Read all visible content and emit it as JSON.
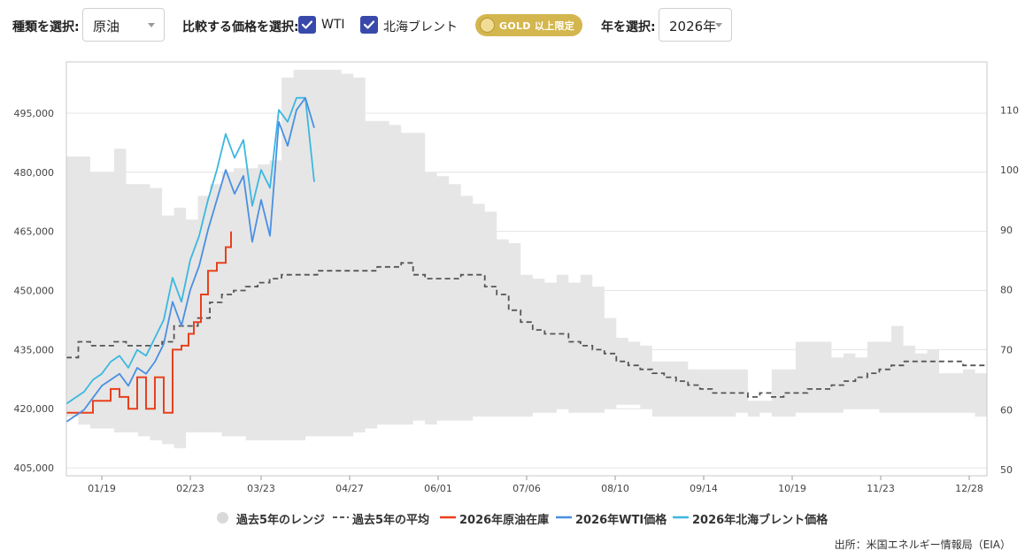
{
  "toolbar": {
    "type_label": "種類を選択:",
    "type_value": "原油",
    "compare_label": "比較する価格を選択:",
    "wti_label": "WTI",
    "brent_label": "北海ブレント",
    "gold_badge": "GOLD 以上限定",
    "year_label": "年を選択:",
    "year_value": "2026年"
  },
  "colors": {
    "range": "#e6e6e6",
    "avg": "#555555",
    "inventory": "#e8401c",
    "wti": "#4a8fe2",
    "brent": "#3cb7e0",
    "checkbox": "#3949ab",
    "gold": "#d4b64e"
  },
  "chart_data": {
    "type": "line",
    "x_ticks": [
      "01/19",
      "02/23",
      "03/23",
      "04/27",
      "06/01",
      "07/06",
      "08/10",
      "09/14",
      "10/19",
      "11/23",
      "12/28"
    ],
    "x_tick_weeks": [
      2,
      7,
      11,
      16,
      21,
      26,
      31,
      36,
      41,
      46,
      51
    ],
    "weeks_total": 52,
    "y_left": {
      "ticks": [
        "405,000",
        "420,000",
        "435,000",
        "450,000",
        "465,000",
        "480,000",
        "495,000"
      ],
      "values": [
        405000,
        420000,
        435000,
        450000,
        465000,
        480000,
        495000
      ],
      "min": 403000,
      "max": 508000
    },
    "y_right": {
      "ticks": [
        "50",
        "60",
        "70",
        "80",
        "90",
        "100",
        "110"
      ],
      "values": [
        50,
        60,
        70,
        80,
        90,
        100,
        110
      ],
      "min": 49,
      "max": 118
    },
    "grid": "horizontal",
    "series": [
      {
        "name": "過去5年のレンジ",
        "kind": "band",
        "axis": "left",
        "upper": [
          484,
          484,
          480,
          480,
          486,
          477,
          477,
          476,
          469,
          471,
          468,
          474,
          477,
          480,
          481,
          481,
          482,
          483,
          504,
          506,
          506,
          506,
          506,
          505,
          504,
          493,
          493,
          492,
          490,
          490,
          480,
          479,
          477,
          474,
          472,
          470,
          463,
          462,
          454,
          453,
          452,
          454,
          452,
          454,
          451,
          443,
          438,
          437,
          436,
          432,
          432,
          432,
          430,
          430,
          430,
          430,
          430,
          422,
          422,
          430,
          430,
          437,
          437,
          437,
          433,
          434,
          433,
          437,
          437,
          441,
          436,
          434,
          435,
          429,
          429,
          430,
          429
        ],
        "lower": [
          418,
          416,
          415,
          415,
          414,
          414,
          413,
          412,
          411,
          410,
          414,
          414,
          414,
          413,
          413,
          412,
          412,
          412,
          412,
          412,
          413,
          413,
          413,
          413,
          414,
          415,
          416,
          416,
          416,
          417,
          416,
          417,
          417,
          417,
          418,
          418,
          418,
          418,
          418,
          419,
          419,
          420,
          419,
          419,
          419,
          420,
          421,
          421,
          420,
          418,
          418,
          418,
          418,
          418,
          418,
          418,
          419,
          418,
          419,
          418,
          418,
          419,
          419,
          419,
          419,
          420,
          420,
          420,
          419,
          419,
          419,
          419,
          419,
          419,
          419,
          419,
          418
        ]
      },
      {
        "name": "過去5年の平均",
        "kind": "dashed",
        "axis": "left",
        "values": [
          433,
          437,
          436,
          436,
          437,
          436,
          436,
          436,
          437,
          441,
          441,
          443,
          447,
          449,
          450,
          451,
          452,
          453,
          454,
          454,
          454,
          455,
          455,
          455,
          455,
          455,
          456,
          456,
          457,
          454,
          453,
          453,
          453,
          454,
          454,
          451,
          449,
          445,
          442,
          440,
          439,
          439,
          437,
          436,
          435,
          434,
          432,
          431,
          430,
          429,
          428,
          427,
          426,
          425,
          424,
          424,
          424,
          423,
          424,
          423,
          424,
          424,
          425,
          425,
          426,
          427,
          428,
          429,
          430,
          431,
          432,
          432,
          432,
          432,
          432,
          431,
          431
        ]
      },
      {
        "name": "2026年原油在庫",
        "kind": "line",
        "axis": "left",
        "x": [
          0,
          1,
          1.5,
          2,
          2.5,
          3,
          3.5,
          4,
          4.5,
          5,
          5.5,
          6,
          6.5,
          6.9,
          7.2,
          7.6,
          8,
          8.5,
          9,
          9.3
        ],
        "values": [
          419,
          419,
          422,
          422,
          425,
          423,
          420,
          428,
          420,
          428,
          419,
          435,
          436,
          439,
          442,
          449,
          455,
          457,
          461,
          465
        ]
      },
      {
        "name": "2026年WTI価格",
        "kind": "line",
        "axis": "right",
        "x": [
          0,
          0.5,
          1,
          1.5,
          2,
          2.5,
          3,
          3.5,
          4,
          4.5,
          5,
          5.5,
          6,
          6.5,
          7,
          7.5,
          8,
          8.5,
          9,
          9.5,
          10,
          10.5,
          11,
          11.5,
          12,
          12.5,
          13,
          13.5,
          14
        ],
        "values": [
          58,
          59,
          60,
          62,
          64,
          65,
          66,
          64,
          67,
          66,
          68,
          71,
          78,
          74,
          80,
          84,
          90,
          95,
          100,
          96,
          99,
          88,
          95,
          89,
          108,
          104,
          110,
          112,
          107
        ]
      },
      {
        "name": "2026年北海ブレント価格",
        "kind": "line",
        "axis": "right",
        "x": [
          0,
          0.5,
          1,
          1.5,
          2,
          2.5,
          3,
          3.5,
          4,
          4.5,
          5,
          5.5,
          6,
          6.5,
          7,
          7.5,
          8,
          8.5,
          9,
          9.5,
          10,
          10.5,
          11,
          11.5,
          12,
          12.5,
          13,
          13.5,
          14
        ],
        "values": [
          61,
          62,
          63,
          65,
          66,
          68,
          69,
          67,
          70,
          69,
          72,
          75,
          82,
          78,
          85,
          89,
          95,
          100,
          106,
          102,
          105,
          94,
          100,
          97,
          110,
          108,
          112,
          112,
          98
        ]
      }
    ]
  },
  "legend": {
    "range": "過去5年のレンジ",
    "avg": "過去5年の平均",
    "inventory": "2026年原油在庫",
    "wti": "2026年WTI価格",
    "brent": "2026年北海ブレント価格"
  },
  "source": "出所：米国エネルギー情報局（EIA）"
}
